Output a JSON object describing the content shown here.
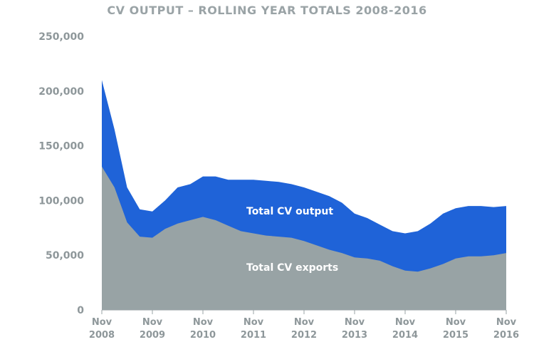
{
  "chart_data": {
    "type": "area",
    "title": "CV OUTPUT – ROLLING YEAR TOTALS 2008-2016",
    "xlabel": "",
    "ylabel": "",
    "ylim": [
      0,
      250000
    ],
    "yticks": [
      0,
      50000,
      100000,
      150000,
      200000,
      250000
    ],
    "ytick_labels": [
      "0",
      "50,000",
      "100,000",
      "150,000",
      "200,000",
      "250,000"
    ],
    "categories": [
      {
        "line1": "Nov",
        "line2": "2008"
      },
      {
        "line1": "Nov",
        "line2": "2009"
      },
      {
        "line1": "Nov",
        "line2": "2010"
      },
      {
        "line1": "Nov",
        "line2": "2011"
      },
      {
        "line1": "Nov",
        "line2": "2012"
      },
      {
        "line1": "Nov",
        "line2": "2013"
      },
      {
        "line1": "Nov",
        "line2": "2014"
      },
      {
        "line1": "Nov",
        "line2": "2015"
      },
      {
        "line1": "Nov",
        "line2": "2016"
      }
    ],
    "x": [
      0,
      0.25,
      0.5,
      0.75,
      1,
      1.25,
      1.5,
      1.75,
      2,
      2.25,
      2.5,
      2.75,
      3,
      3.25,
      3.5,
      3.75,
      4,
      4.25,
      4.5,
      4.75,
      5,
      5.25,
      5.5,
      5.75,
      6,
      6.25,
      6.5,
      6.75,
      7,
      7.25,
      7.5,
      7.75,
      8
    ],
    "series": [
      {
        "name": "Total CV output",
        "color": "#1f63d8",
        "values": [
          210000,
          165000,
          112000,
          92000,
          90000,
          100000,
          112000,
          115000,
          122000,
          122000,
          119000,
          119000,
          119000,
          118000,
          117000,
          115000,
          112000,
          108000,
          104000,
          98000,
          88000,
          84000,
          78000,
          72000,
          70000,
          72000,
          79000,
          88000,
          93000,
          95000,
          95000,
          94000,
          95000
        ]
      },
      {
        "name": "Total CV exports",
        "color": "#98a3a5",
        "values": [
          131000,
          112000,
          80000,
          67000,
          66000,
          74000,
          79000,
          82000,
          85000,
          82000,
          77000,
          72000,
          70000,
          68000,
          67000,
          66000,
          63000,
          59000,
          55000,
          52000,
          48000,
          47000,
          45000,
          40000,
          36000,
          35000,
          38000,
          42000,
          47000,
          49000,
          49000,
          50000,
          52000
        ]
      }
    ]
  }
}
